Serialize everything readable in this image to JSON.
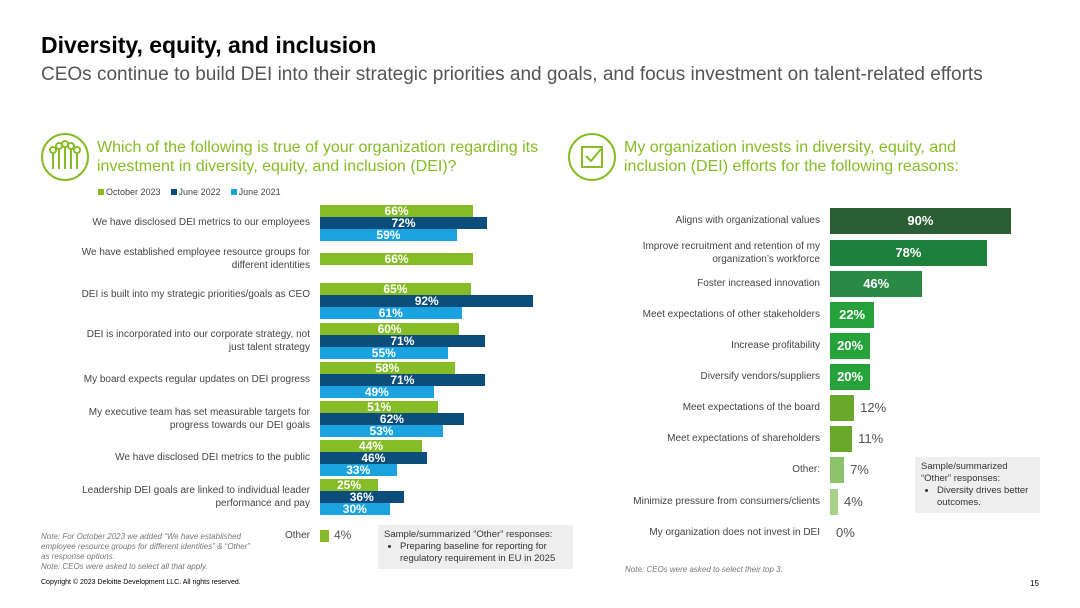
{
  "title": "Diversity, equity, and inclusion",
  "subtitle": "CEOs continue to build DEI into their strategic priorities and goals, and focus investment on talent-related efforts",
  "left": {
    "question": "Which of the following is true of your organization regarding its investment in diversity, equity, and inclusion (DEI)?",
    "other_label": "Other",
    "other_value": "4%",
    "callout_title": "Sample/summarized “Other” responses:",
    "callout_items": [
      "Preparing baseline for reporting for regulatory requirement in EU in 2025"
    ],
    "notes": [
      "Note: For October 2023 we added “We have established employee resource groups for different identities” & “Other” as response options.",
      "Note: CEOs were asked to select all that apply."
    ]
  },
  "right": {
    "question": "My organization invests in diversity, equity, and inclusion (DEI) efforts for the following reasons:",
    "callout_title": "Sample/summarized “Other” responses:",
    "callout_items": [
      "Diversity drives better outcomes."
    ],
    "note": "Note: CEOs were asked to select their top 3."
  },
  "copyright": "Copyright © 2023 Deloitte Development LLC. All rights reserved.",
  "page_number": "15",
  "chart_data": [
    {
      "type": "bar",
      "orientation": "horizontal",
      "legend": [
        "October 2023",
        "June 2022",
        "June 2021"
      ],
      "colors": [
        "#86bc25",
        "#0d4d7c",
        "#1aa3de"
      ],
      "categories": [
        "We have disclosed DEI metrics to our employees",
        "We have established employee resource groups for different identities",
        "DEI is built into my strategic priorities/goals as CEO",
        "DEI is incorporated into our corporate strategy, not just talent strategy",
        "My board expects regular updates on DEI progress",
        "My executive team has set measurable targets for progress towards our DEI goals",
        "We have disclosed DEI metrics to the public",
        "Leadership DEI goals are linked to individual leader performance and pay",
        "Other"
      ],
      "series": [
        {
          "name": "October 2023",
          "values": [
            66,
            66,
            65,
            60,
            58,
            51,
            44,
            25,
            4
          ]
        },
        {
          "name": "June 2022",
          "values": [
            72,
            null,
            92,
            71,
            71,
            62,
            46,
            36,
            null
          ]
        },
        {
          "name": "June 2021",
          "values": [
            59,
            null,
            61,
            55,
            49,
            53,
            33,
            30,
            null
          ]
        }
      ],
      "unit": "%"
    },
    {
      "type": "bar",
      "orientation": "horizontal",
      "categories": [
        "Aligns with organizational values",
        "Improve recruitment and retention of my organization’s workforce",
        "Foster increased innovation",
        "Meet expectations of other stakeholders",
        "Increase profitability",
        "Diversify vendors/suppliers",
        "Meet expectations of the board",
        "Meet expectations of shareholders",
        "Other:",
        "Minimize pressure from consumers/clients",
        "My organization does not invest in DEI"
      ],
      "values": [
        90,
        78,
        46,
        22,
        20,
        20,
        12,
        11,
        7,
        4,
        0
      ],
      "colors": [
        "#2b5e33",
        "#1e7f3a",
        "#2a8a45",
        "#26a23b",
        "#26a23b",
        "#26a23b",
        "#6aa82a",
        "#6aa82a",
        "#8cc26a",
        "#a8d28a",
        "#a8d28a"
      ],
      "unit": "%"
    }
  ]
}
